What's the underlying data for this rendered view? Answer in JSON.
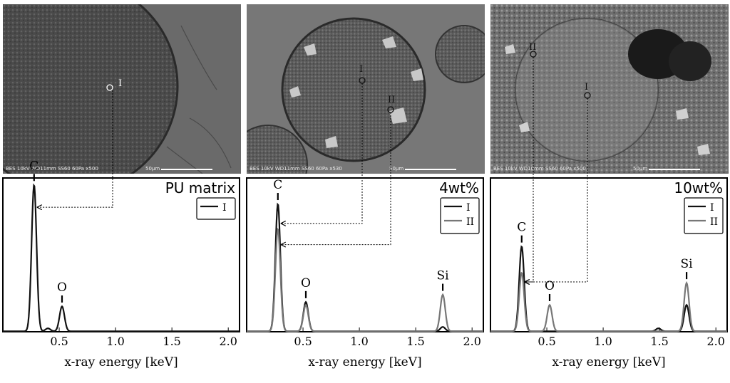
{
  "colors": {
    "series_I": "#111111",
    "series_II": "#777777",
    "frame": "#000000"
  },
  "sem_images": [
    {
      "name": "sem-pu-matrix",
      "info": "BES 10kV   WD11mm SS60   60Pa  x500",
      "scale": "50µm",
      "points": [
        "I"
      ]
    },
    {
      "name": "sem-4wt",
      "info": "BES 10kV   WD11mm SS60   60Pa  x530",
      "scale": "50µm",
      "points": [
        "I",
        "II"
      ]
    },
    {
      "name": "sem-10wt",
      "info": "BES 10kV   WD10mm SS60   60Pa  x500",
      "scale": "50µm",
      "points": [
        "II",
        "I"
      ]
    }
  ],
  "chart_data": [
    {
      "type": "line",
      "title": "PU matrix",
      "xlabel": "x-ray energy [keV]",
      "ylabel": "",
      "xlim": [
        0.0,
        2.1
      ],
      "ylim": [
        0,
        1.05
      ],
      "xticks": [
        "0.5",
        "1.0",
        "1.5",
        "2.0"
      ],
      "legend": "top-right",
      "grid": false,
      "series": [
        {
          "name": "I",
          "peaks": [
            {
              "x": 0.277,
              "height": 1.0
            },
            {
              "x": 0.4,
              "height": 0.02
            },
            {
              "x": 0.525,
              "height": 0.17
            }
          ]
        }
      ],
      "annotations": [
        {
          "text": "C",
          "x": 0.277
        },
        {
          "text": "O",
          "x": 0.525
        }
      ]
    },
    {
      "type": "line",
      "title": "4wt%",
      "xlabel": "x-ray energy [keV]",
      "ylabel": "",
      "xlim": [
        0.0,
        2.1
      ],
      "ylim": [
        0,
        1.05
      ],
      "xticks": [
        "0.5",
        "1.0",
        "1.5",
        "2.0"
      ],
      "legend": "top-right",
      "grid": false,
      "series": [
        {
          "name": "I",
          "peaks": [
            {
              "x": 0.277,
              "height": 0.87
            },
            {
              "x": 0.525,
              "height": 0.2
            },
            {
              "x": 1.74,
              "height": 0.03
            }
          ]
        },
        {
          "name": "II",
          "peaks": [
            {
              "x": 0.277,
              "height": 0.7
            },
            {
              "x": 0.525,
              "height": 0.18
            },
            {
              "x": 1.74,
              "height": 0.25
            }
          ]
        }
      ],
      "annotations": [
        {
          "text": "C",
          "x": 0.277
        },
        {
          "text": "O",
          "x": 0.525
        },
        {
          "text": "Si",
          "x": 1.74
        }
      ]
    },
    {
      "type": "line",
      "title": "10wt%",
      "xlabel": "x-ray energy [keV]",
      "ylabel": "",
      "xlim": [
        0.0,
        2.1
      ],
      "ylim": [
        0,
        1.05
      ],
      "xticks": [
        "0.5",
        "1.0",
        "1.5",
        "2.0"
      ],
      "legend": "top-right",
      "grid": false,
      "series": [
        {
          "name": "I",
          "peaks": [
            {
              "x": 0.277,
              "height": 0.58
            },
            {
              "x": 1.49,
              "height": 0.02
            },
            {
              "x": 1.74,
              "height": 0.18
            }
          ]
        },
        {
          "name": "II",
          "peaks": [
            {
              "x": 0.277,
              "height": 0.4
            },
            {
              "x": 0.525,
              "height": 0.18
            },
            {
              "x": 1.74,
              "height": 0.33
            }
          ]
        }
      ],
      "annotations": [
        {
          "text": "C",
          "x": 0.277
        },
        {
          "text": "O",
          "x": 0.525
        },
        {
          "text": "Si",
          "x": 1.74
        }
      ]
    }
  ]
}
